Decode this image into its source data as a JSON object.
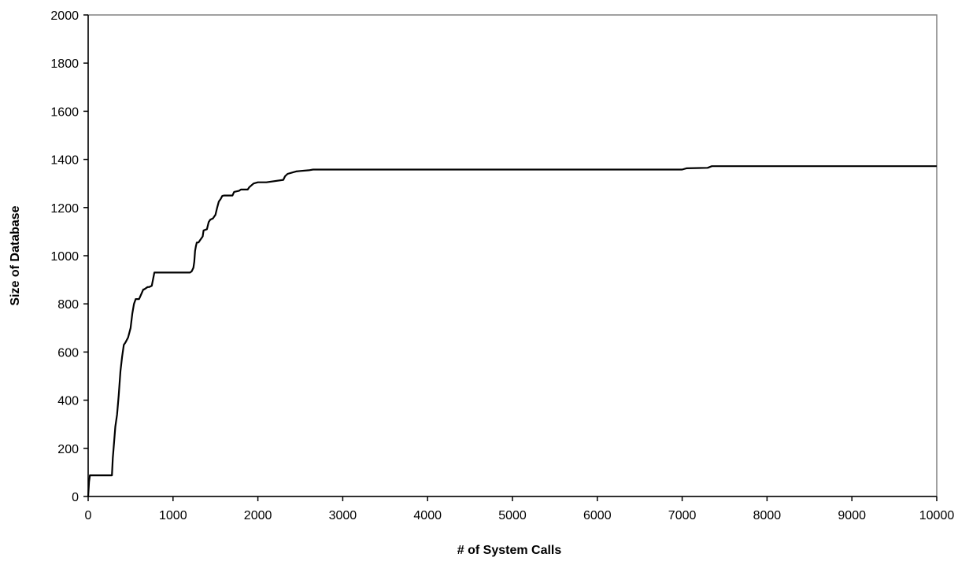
{
  "chart_data": {
    "type": "line",
    "title": "",
    "xlabel": "# of System Calls",
    "ylabel": "Size of Database",
    "xlim": [
      0,
      10000
    ],
    "ylim": [
      0,
      2000
    ],
    "x_ticks": [
      0,
      1000,
      2000,
      3000,
      4000,
      5000,
      6000,
      7000,
      8000,
      9000,
      10000
    ],
    "y_ticks": [
      0,
      200,
      400,
      600,
      800,
      1000,
      1200,
      1400,
      1600,
      1800,
      2000
    ],
    "x_tick_labels": [
      "0",
      "1000",
      "2000",
      "3000",
      "4000",
      "5000",
      "6000",
      "7000",
      "8000",
      "9000",
      "10000"
    ],
    "y_tick_labels": [
      "0",
      "200",
      "400",
      "600",
      "800",
      "1000",
      "1200",
      "1400",
      "1600",
      "1800",
      "2000"
    ],
    "grid": false,
    "legend": "none",
    "line_color": "#000000",
    "series": [
      {
        "x": [
          0,
          10,
          20,
          30,
          280,
          290,
          300,
          320,
          340,
          360,
          380,
          400,
          420,
          440,
          470,
          500,
          520,
          540,
          560,
          580,
          600,
          650,
          660,
          700,
          720,
          750,
          780,
          820,
          840,
          850,
          900,
          1000,
          1100,
          1200,
          1220,
          1240,
          1250,
          1260,
          1270,
          1280,
          1300,
          1350,
          1360,
          1400,
          1420,
          1440,
          1470,
          1500,
          1520,
          1540,
          1560,
          1580,
          1600,
          1650,
          1700,
          1720,
          1780,
          1800,
          1880,
          1900,
          1950,
          2000,
          2020,
          2050,
          2100,
          2300,
          2320,
          2350,
          2400,
          2450,
          2500,
          2600,
          2650,
          2700,
          3000,
          4000,
          5000,
          6000,
          7000,
          7050,
          7300,
          7350,
          8000,
          9000,
          10000
        ],
        "y": [
          0,
          60,
          88,
          88,
          88,
          160,
          200,
          290,
          340,
          420,
          520,
          580,
          630,
          640,
          660,
          700,
          760,
          800,
          820,
          820,
          820,
          860,
          860,
          870,
          870,
          875,
          930,
          930,
          930,
          930,
          930,
          930,
          930,
          930,
          935,
          950,
          975,
          1020,
          1040,
          1055,
          1055,
          1080,
          1105,
          1110,
          1140,
          1150,
          1155,
          1170,
          1200,
          1225,
          1235,
          1248,
          1250,
          1250,
          1250,
          1265,
          1270,
          1275,
          1275,
          1285,
          1300,
          1305,
          1305,
          1305,
          1305,
          1315,
          1330,
          1340,
          1345,
          1350,
          1352,
          1355,
          1358,
          1358,
          1358,
          1358,
          1358,
          1358,
          1358,
          1363,
          1365,
          1372,
          1372,
          1372,
          1372
        ]
      }
    ]
  }
}
